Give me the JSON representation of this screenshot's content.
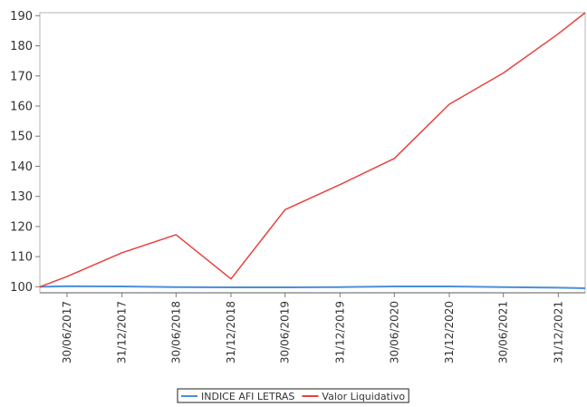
{
  "chart_data": {
    "type": "line",
    "categories": [
      "30/06/2017",
      "31/12/2017",
      "30/06/2018",
      "31/12/2018",
      "30/06/2019",
      "31/12/2019",
      "30/06/2020",
      "31/12/2020",
      "30/06/2021",
      "31/12/2021"
    ],
    "series": [
      {
        "name": "INDICE AFI LETRAS",
        "color": "#4a90d9",
        "x": [
          "2017-03-31",
          "2017-06-30",
          "2017-12-31",
          "2018-06-30",
          "2018-12-31",
          "2019-06-30",
          "2019-12-31",
          "2020-06-30",
          "2020-12-31",
          "2021-06-30",
          "2021-12-31",
          "2022-03-31"
        ],
        "values": [
          100,
          100.2,
          100.1,
          99.9,
          99.8,
          99.8,
          99.9,
          100.1,
          100.1,
          99.9,
          99.7,
          99.5
        ]
      },
      {
        "name": "Valor Liquidativo",
        "color": "#e8413c",
        "x": [
          "2017-03-31",
          "2017-06-30",
          "2017-12-31",
          "2018-06-30",
          "2018-12-31",
          "2019-06-30",
          "2019-12-31",
          "2020-06-30",
          "2020-12-31",
          "2021-06-30",
          "2021-12-31",
          "2022-03-31"
        ],
        "values": [
          100,
          103.4,
          111.3,
          117.3,
          102.6,
          125.6,
          133.9,
          142.6,
          160.6,
          171,
          184,
          191
        ]
      }
    ],
    "yticks": [
      100,
      110,
      120,
      130,
      140,
      150,
      160,
      170,
      180,
      190
    ],
    "ylim": [
      98,
      191
    ],
    "xlim": [
      "2017-03-31",
      "2022-03-31"
    ],
    "grid": false,
    "legend_position": "bottom"
  }
}
